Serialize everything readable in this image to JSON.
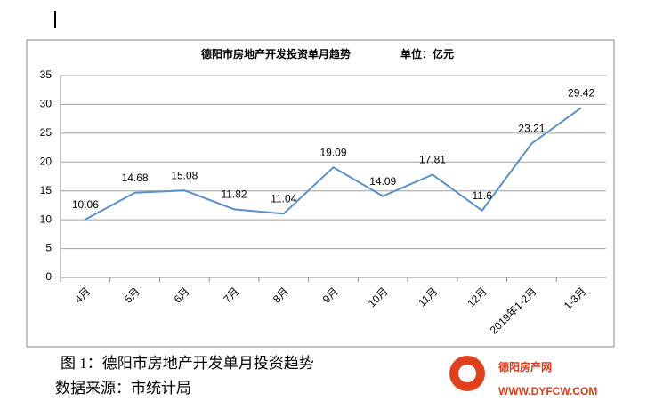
{
  "chart_data": {
    "type": "line",
    "title": "德阳市房地产开发投资单月趋势",
    "subtitle": "单位：亿元",
    "categories": [
      "4月",
      "5月",
      "6月",
      "7月",
      "8月",
      "9月",
      "10月",
      "11月",
      "12月",
      "2019年1-2月",
      "1-3月"
    ],
    "series": [
      {
        "color": "#5b8fc7",
        "values": [
          10.06,
          14.68,
          15.08,
          11.82,
          11.04,
          19.09,
          14.09,
          17.81,
          11.6,
          23.21,
          29.42
        ]
      }
    ],
    "ylim": [
      0,
      35
    ],
    "yticks": [
      0,
      5,
      10,
      15,
      20,
      25,
      30,
      35
    ],
    "grid": true
  },
  "caption": {
    "figure": "图 1：德阳市房地产开发单月投资趋势",
    "source": "数据来源：市统计局"
  },
  "watermark": {
    "name": "德阳房产网",
    "url": "WWW.DYFCW.COM"
  }
}
